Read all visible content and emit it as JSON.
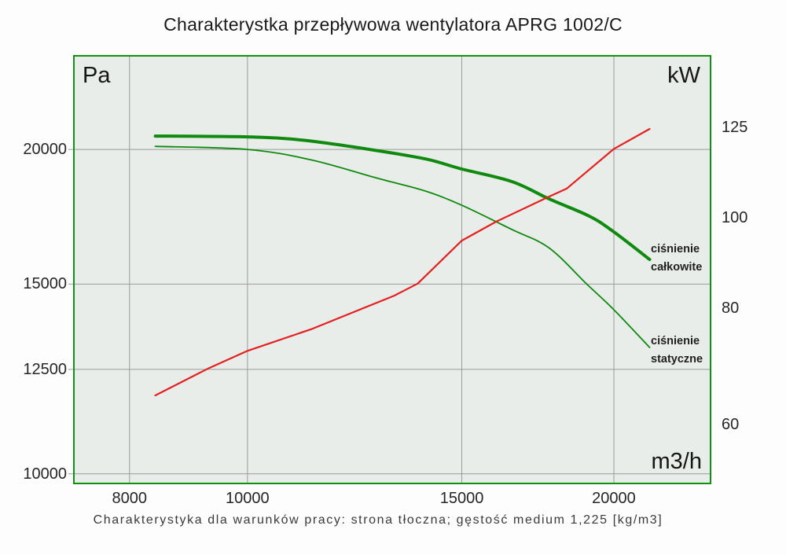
{
  "title": "Charakterystka przepływowa wentylatora APRG 1002/C",
  "caption": "Charakterystyka dla warunków pracy: strona tłoczna; gęstość medium 1,225 [kg/m3]",
  "axes": {
    "left_unit": "Pa",
    "right_unit": "kW",
    "x_unit": "m3/h"
  },
  "legend": {
    "total_line1": "ciśnienie",
    "total_line2": "całkowite",
    "static_line1": "ciśnienie",
    "static_line2": "statyczne"
  },
  "colors": {
    "curve_green": "#0f8a0f",
    "curve_red": "#e42020",
    "plot_bg": "#e9ede9",
    "plot_border": "#129012",
    "grid": "#9a9a9a"
  },
  "chart_data": {
    "type": "line",
    "title": "Charakterystka przepływowa wentylatora APRG 1002/C",
    "grid": true,
    "x_axis": {
      "unit": "m3/h",
      "scale": "log",
      "ticks": [
        8000,
        10000,
        15000,
        20000
      ],
      "range": [
        7190,
        24050
      ]
    },
    "y_axis_left": {
      "unit": "Pa",
      "scale": "log",
      "ticks": [
        20000,
        15000,
        12500,
        10000
      ],
      "range": [
        9780,
        24470
      ]
    },
    "y_axis_right": {
      "unit": "kW",
      "scale": "log",
      "ticks": [
        125,
        100,
        80,
        60
      ],
      "range": [
        51.8,
        149.4
      ]
    },
    "series": [
      {
        "name": "ciśnienie całkowite",
        "axis": "left",
        "color": "#0f8a0f",
        "width": 4,
        "smooth": true,
        "points": [
          [
            8400,
            20580
          ],
          [
            10000,
            20545
          ],
          [
            11100,
            20400
          ],
          [
            12600,
            20000
          ],
          [
            14000,
            19600
          ],
          [
            15000,
            19180
          ],
          [
            16500,
            18670
          ],
          [
            17700,
            17990
          ],
          [
            19100,
            17340
          ],
          [
            20000,
            16770
          ],
          [
            21400,
            15810
          ]
        ]
      },
      {
        "name": "ciśnienie statyczne",
        "axis": "left",
        "color": "#0f8a0f",
        "width": 1.8,
        "smooth": true,
        "points": [
          [
            8400,
            20130
          ],
          [
            10000,
            20000
          ],
          [
            11300,
            19550
          ],
          [
            12800,
            18800
          ],
          [
            14000,
            18300
          ],
          [
            15000,
            17750
          ],
          [
            16500,
            16850
          ],
          [
            17700,
            16200
          ],
          [
            19000,
            15000
          ],
          [
            20000,
            14200
          ],
          [
            21400,
            13100
          ]
        ]
      },
      {
        "name": "kW",
        "axis": "right",
        "color": "#e42020",
        "width": 2.2,
        "smooth": false,
        "points": [
          [
            8400,
            64.5
          ],
          [
            9300,
            69
          ],
          [
            10000,
            72
          ],
          [
            11300,
            76
          ],
          [
            13200,
            82.5
          ],
          [
            13800,
            85
          ],
          [
            15000,
            94.5
          ],
          [
            16000,
            99
          ],
          [
            17600,
            105
          ],
          [
            18300,
            107.5
          ],
          [
            20000,
            118.5
          ],
          [
            21400,
            124.5
          ]
        ]
      }
    ]
  }
}
